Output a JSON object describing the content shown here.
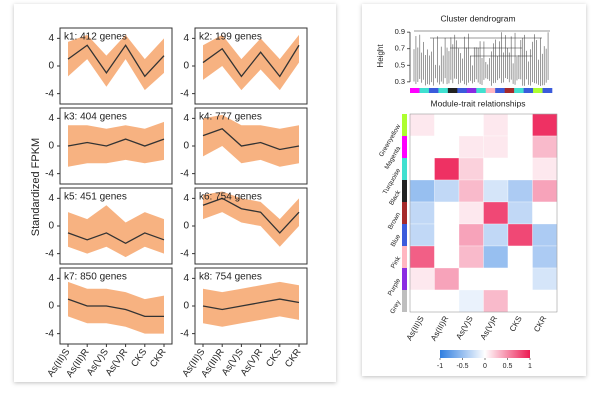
{
  "left_panel": {
    "ylabel": "Standardized FPKM",
    "categories": [
      "As(III)S",
      "As(III)R",
      "As(V)S",
      "As(V)R",
      "CKS",
      "CKR"
    ]
  },
  "chart_data": [
    {
      "type": "line",
      "title": "k1: 412 genes",
      "values": [
        1,
        3,
        -1,
        3,
        -1.5,
        1.5
      ],
      "band_upper": [
        3.5,
        4.5,
        1.5,
        4.5,
        1,
        4
      ],
      "band_lower": [
        -1.5,
        1,
        -3,
        1,
        -3.5,
        -1
      ],
      "color": "#333333",
      "band_color": "#f6a46b",
      "ylim": [
        -5.5,
        5.5
      ],
      "yticks": [
        -4,
        0,
        4
      ]
    },
    {
      "type": "line",
      "title": "k2: 199 genes",
      "values": [
        0.5,
        2.5,
        -1.5,
        2,
        -1.5,
        3
      ],
      "band_upper": [
        3,
        4.5,
        1,
        4,
        1,
        4.5
      ],
      "band_lower": [
        -2,
        0,
        -3.5,
        -0.5,
        -3.5,
        0.5
      ],
      "color": "#333333",
      "band_color": "#f6a46b",
      "ylim": [
        -5.5,
        5.5
      ],
      "yticks": [
        -4,
        0,
        4
      ]
    },
    {
      "type": "line",
      "title": "k3: 404 genes",
      "values": [
        0,
        0.5,
        0,
        1,
        0,
        1
      ],
      "band_upper": [
        3,
        3,
        2.5,
        3,
        2.5,
        3.5
      ],
      "band_lower": [
        -3,
        -2.5,
        -2.5,
        -2,
        -2.5,
        -2
      ],
      "color": "#333333",
      "band_color": "#f6a46b",
      "ylim": [
        -5.5,
        5.5
      ],
      "yticks": [
        -4,
        0,
        4
      ]
    },
    {
      "type": "line",
      "title": "k4: 777 genes",
      "values": [
        1.5,
        2.5,
        0,
        0.5,
        -0.5,
        0
      ],
      "band_upper": [
        4,
        4.5,
        3,
        3,
        2.5,
        3
      ],
      "band_lower": [
        -1.5,
        0,
        -2.5,
        -2,
        -3,
        -2.5
      ],
      "color": "#333333",
      "band_color": "#f6a46b",
      "ylim": [
        -5.5,
        5.5
      ],
      "yticks": [
        -4,
        0,
        4
      ]
    },
    {
      "type": "line",
      "title": "k5: 451 genes",
      "values": [
        -1,
        -2,
        -1,
        -2.5,
        -1,
        -2
      ],
      "band_upper": [
        2,
        1,
        3,
        0.5,
        2,
        1
      ],
      "band_lower": [
        -3,
        -4,
        -3,
        -4.5,
        -3,
        -4
      ],
      "color": "#333333",
      "band_color": "#f6a46b",
      "ylim": [
        -5.5,
        5.5
      ],
      "yticks": [
        -4,
        0,
        4
      ]
    },
    {
      "type": "line",
      "title": "k6: 754 genes",
      "values": [
        3,
        4,
        2.5,
        2,
        -1,
        2
      ],
      "band_upper": [
        4.5,
        5,
        4,
        3.5,
        1,
        4
      ],
      "band_lower": [
        1,
        2,
        0.5,
        0,
        -3,
        0
      ],
      "color": "#333333",
      "band_color": "#f6a46b",
      "ylim": [
        -5.5,
        5.5
      ],
      "yticks": [
        -4,
        0,
        4
      ]
    },
    {
      "type": "line",
      "title": "k7: 850 genes",
      "values": [
        1,
        0,
        0,
        -0.5,
        -1.5,
        -1.5
      ],
      "band_upper": [
        3.5,
        2.5,
        2.5,
        2,
        1,
        1.5
      ],
      "band_lower": [
        -1.5,
        -2.5,
        -2.5,
        -3,
        -4,
        -4
      ],
      "color": "#333333",
      "band_color": "#f6a46b",
      "ylim": [
        -5.5,
        5.5
      ],
      "yticks": [
        -4,
        0,
        4
      ]
    },
    {
      "type": "line",
      "title": "k8: 754 genes",
      "values": [
        0,
        -0.5,
        0,
        0.5,
        1,
        0.5
      ],
      "band_upper": [
        2.5,
        2,
        2.5,
        3,
        3.5,
        3
      ],
      "band_lower": [
        -2.5,
        -3,
        -2.5,
        -2,
        -1.5,
        -2
      ],
      "color": "#333333",
      "band_color": "#f6a46b",
      "ylim": [
        -5.5,
        5.5
      ],
      "yticks": [
        -4,
        0,
        4
      ]
    },
    {
      "type": "dendrogram",
      "title": "Cluster dendrogram",
      "ylabel": "Height",
      "ylim": [
        0.25,
        0.95
      ],
      "yticks": [
        0.3,
        0.5,
        0.7,
        0.9
      ]
    },
    {
      "type": "heatmap",
      "title": "Module-trait relationships",
      "rows": [
        "Greenyellow",
        "Magenta",
        "Turquoise",
        "Black",
        "Brown",
        "Blue",
        "Pink",
        "Purple",
        "Grey"
      ],
      "row_colors": [
        "#adff2f",
        "#ff00ff",
        "#40e0d0",
        "#222222",
        "#a52a2a",
        "#3b5bdb",
        "#ffb6c1",
        "#8a2be2",
        "#bebebe"
      ],
      "columns": [
        "As(III)S",
        "As(III)R",
        "As(V)S",
        "As(V)R",
        "CKS",
        "CKR"
      ],
      "values": [
        [
          0.1,
          0,
          0,
          0.1,
          0,
          0.9
        ],
        [
          0,
          0,
          0.1,
          0.1,
          0,
          0.3
        ],
        [
          0,
          0.9,
          0.2,
          0,
          0,
          0.1
        ],
        [
          -0.5,
          -0.3,
          0.3,
          -0.2,
          -0.4,
          0.4
        ],
        [
          -0.3,
          0,
          0.1,
          0.8,
          -0.3,
          0
        ],
        [
          -0.3,
          0,
          0.4,
          -0.3,
          0.8,
          -0.4
        ],
        [
          0.7,
          0,
          0.3,
          -0.5,
          0,
          -0.4
        ],
        [
          0.1,
          0.4,
          0,
          0,
          0,
          -0.2
        ],
        [
          0,
          0,
          -0.1,
          0.3,
          0,
          0
        ]
      ],
      "zlim": [
        -1,
        1
      ],
      "colorbar_ticks": [
        -1,
        -0.5,
        0,
        0.5,
        1
      ],
      "low_color": "#2f7ee0",
      "mid_color": "#ffffff",
      "high_color": "#ec1a52"
    }
  ]
}
